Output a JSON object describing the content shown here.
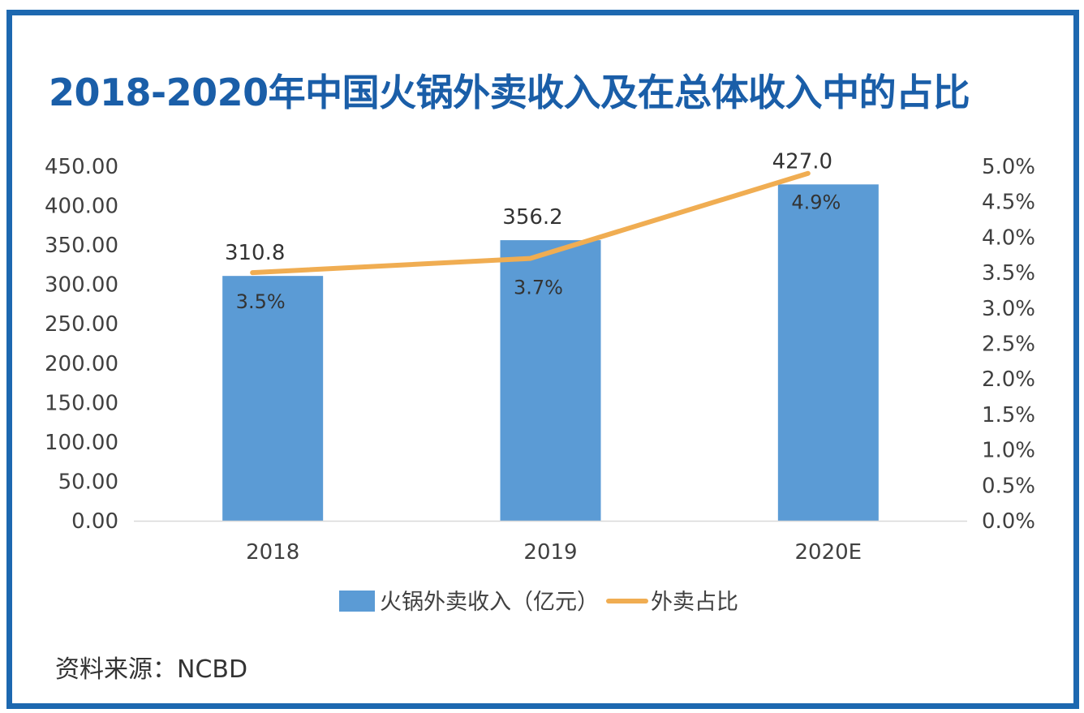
{
  "title": "2018-2020年中国火锅外卖收入及在总体收入中的占比",
  "source": "资料来源：NCBD",
  "colors": {
    "frame": "#1d68b0",
    "title": "#1a5ea8",
    "bar": "#5b9bd5",
    "line": "#f0ad52",
    "axis_text": "#404040"
  },
  "chart_data": {
    "type": "bar",
    "title": "2018-2020年中国火锅外卖收入及在总体收入中的占比",
    "categories": [
      "2018",
      "2019",
      "2020E"
    ],
    "series": [
      {
        "name": "火锅外卖收入（亿元）",
        "type": "bar",
        "axis": "left",
        "values": [
          310.8,
          356.2,
          427.0
        ],
        "labels": [
          "310.8",
          "356.2",
          "427.0"
        ]
      },
      {
        "name": "外卖占比",
        "type": "line",
        "axis": "right",
        "values": [
          3.5,
          3.7,
          4.9
        ],
        "labels": [
          "3.5%",
          "3.7%",
          "4.9%"
        ]
      }
    ],
    "y_left": {
      "min": 0,
      "max": 450,
      "step": 50,
      "ticks": [
        "0.00",
        "50.00",
        "100.00",
        "150.00",
        "200.00",
        "250.00",
        "300.00",
        "350.00",
        "400.00",
        "450.00"
      ]
    },
    "y_right": {
      "min": 0,
      "max": 5,
      "step": 0.5,
      "ticks": [
        "0.0%",
        "0.5%",
        "1.0%",
        "1.5%",
        "2.0%",
        "2.5%",
        "3.0%",
        "3.5%",
        "4.0%",
        "4.5%",
        "5.0%"
      ]
    },
    "legend": {
      "position": "bottom",
      "items": [
        {
          "label": "火锅外卖收入（亿元）",
          "kind": "bar"
        },
        {
          "label": "外卖占比",
          "kind": "line"
        }
      ]
    },
    "grid": false
  }
}
